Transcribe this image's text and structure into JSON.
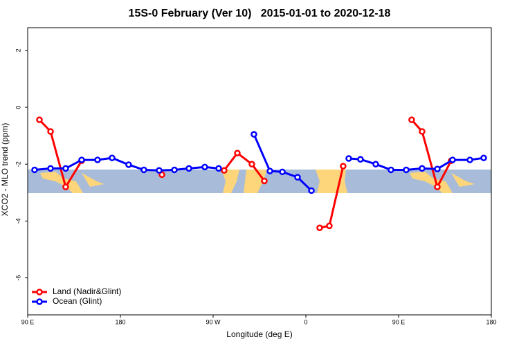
{
  "chart_data": {
    "type": "line",
    "title": "15S-0 February (Ver 10)   2015-01-01 to 2020-12-18",
    "xlabel": "Longitude (deg E)",
    "ylabel": "XCO2 - MLO trend (ppm)",
    "xlim": [
      90,
      540
    ],
    "ylim": [
      -7.3,
      2.8
    ],
    "xticks": [
      {
        "value": 90,
        "label": "90 E"
      },
      180,
      {
        "value": 270,
        "label": "90 W"
      },
      {
        "value": 360,
        "label": "0"
      },
      {
        "value": 450,
        "label": "90 E"
      },
      {
        "value": 540,
        "label": "180"
      }
    ],
    "yticks": [
      2,
      0,
      -2,
      -4,
      -6
    ],
    "legend": "bottom-left",
    "series": [
      {
        "name": "Land (Nadir&Glint)",
        "color": "#ff0000",
        "x": [
          101.4,
          112.2,
          126.9,
          142.4,
          null,
          220.3,
          null,
          280.7,
          293.5,
          307.6,
          319.7,
          null,
          373.4,
          382.8,
          396.2,
          null,
          462.7,
          472.8,
          487.6,
          501.0
        ],
        "values": [
          -0.44,
          -0.85,
          -2.8,
          -1.88,
          null,
          -2.37,
          null,
          -2.22,
          -1.61,
          -2.0,
          -2.59,
          null,
          -4.24,
          -4.17,
          -2.07,
          null,
          -0.44,
          -0.85,
          -2.8,
          -1.88
        ]
      },
      {
        "name": "Ocean (Glint)",
        "color": "#0000ff",
        "x": [
          96.7,
          112.2,
          126.9,
          142.4,
          157.8,
          171.9,
          188.0,
          202.8,
          217.6,
          232.4,
          246.5,
          261.9,
          275.4,
          null,
          309.6,
          325.1,
          337.2,
          351.9,
          365.4,
          null,
          401.6,
          413.0,
          427.8,
          442.6,
          457.4,
          472.8,
          487.6,
          502.4,
          519.2,
          532.6
        ],
        "values": [
          -2.2,
          -2.15,
          -2.15,
          -1.85,
          -1.85,
          -1.78,
          -2.02,
          -2.2,
          -2.22,
          -2.2,
          -2.15,
          -2.1,
          -2.15,
          null,
          -0.95,
          -2.24,
          -2.27,
          -2.46,
          -2.93,
          null,
          -1.8,
          -1.83,
          -2.0,
          -2.2,
          -2.2,
          -2.15,
          -2.17,
          -1.85,
          -1.85,
          -1.78
        ]
      }
    ]
  }
}
